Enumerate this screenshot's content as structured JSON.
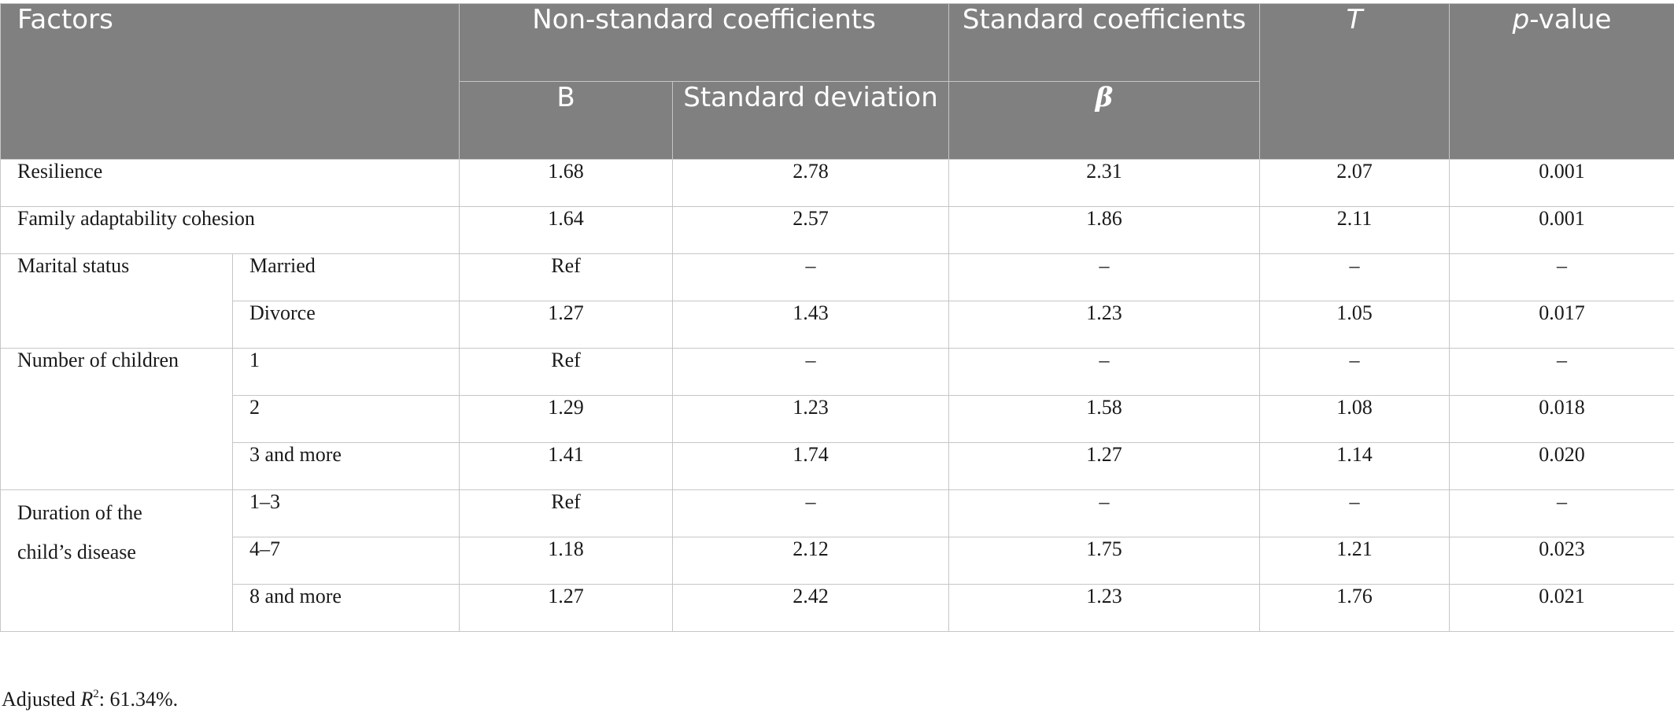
{
  "header": {
    "factors": "Factors",
    "nonstandard": "Non-standard coefficients",
    "standard": "Standard coefficients",
    "t_label": "T",
    "p_italic": "p",
    "p_rest": "-value",
    "b": "B",
    "std_dev": "Standard deviation",
    "beta": "β"
  },
  "rows": {
    "resilience": {
      "label": "Resilience",
      "b": "1.68",
      "sd": "2.78",
      "beta": "2.31",
      "t": "2.07",
      "p": "0.001"
    },
    "family": {
      "label": "Family adaptability cohesion",
      "b": "1.64",
      "sd": "2.57",
      "beta": "1.86",
      "t": "2.11",
      "p": "0.001"
    },
    "marital": {
      "label": "Marital status",
      "married": {
        "label": "Married",
        "b": "Ref",
        "sd": "–",
        "beta": "–",
        "t": "–",
        "p": "–"
      },
      "divorce": {
        "label": "Divorce",
        "b": "1.27",
        "sd": "1.43",
        "beta": "1.23",
        "t": "1.05",
        "p": "0.017"
      }
    },
    "children": {
      "label": "Number of children",
      "one": {
        "label": "1",
        "b": "Ref",
        "sd": "–",
        "beta": "–",
        "t": "–",
        "p": "–"
      },
      "two": {
        "label": "2",
        "b": "1.29",
        "sd": "1.23",
        "beta": "1.58",
        "t": "1.08",
        "p": "0.018"
      },
      "three": {
        "label": "3 and more",
        "b": "1.41",
        "sd": "1.74",
        "beta": "1.27",
        "t": "1.14",
        "p": "0.020"
      }
    },
    "duration": {
      "label_line1": "Duration of the",
      "label_line2": "child’s disease",
      "d1": {
        "label": "1–3",
        "b": "Ref",
        "sd": "–",
        "beta": "–",
        "t": "–",
        "p": "–"
      },
      "d2": {
        "label": "4–7",
        "b": "1.18",
        "sd": "2.12",
        "beta": "1.75",
        "t": "1.21",
        "p": "0.023"
      },
      "d3": {
        "label": "8 and more",
        "b": "1.27",
        "sd": "2.42",
        "beta": "1.23",
        "t": "1.76",
        "p": "0.021"
      }
    }
  },
  "footnote": {
    "prefix": "Adjusted ",
    "r": "R",
    "sup": "2",
    "suffix": ": 61.34%."
  }
}
